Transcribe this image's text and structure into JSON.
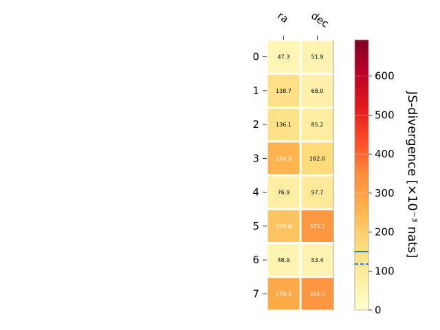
{
  "chart_data": {
    "type": "heatmap",
    "columns": [
      "ra",
      "dec"
    ],
    "rows": [
      "0",
      "1",
      "2",
      "3",
      "4",
      "5",
      "6",
      "7"
    ],
    "values": [
      [
        47.3,
        51.9
      ],
      [
        138.7,
        68.0
      ],
      [
        136.1,
        85.2
      ],
      [
        254.9,
        162.0
      ],
      [
        76.9,
        97.7
      ],
      [
        220.8,
        323.7
      ],
      [
        48.9,
        53.4
      ],
      [
        278.3,
        324.3
      ]
    ],
    "value_labels": [
      [
        "47.3",
        "51.9"
      ],
      [
        "138.7",
        "68.0"
      ],
      [
        "136.1",
        "85.2"
      ],
      [
        "254.9",
        "162.0"
      ],
      [
        "76.9",
        "97.7"
      ],
      [
        "220.8",
        "323.7"
      ],
      [
        "48.9",
        "53.4"
      ],
      [
        "278.3",
        "324.3"
      ]
    ],
    "colorbar": {
      "label": "JS-divergence [×10⁻³ nats]",
      "range": [
        0,
        693
      ],
      "ticks": [
        "0",
        "100",
        "200",
        "300",
        "400",
        "500",
        "600"
      ],
      "tick_values": [
        0,
        100,
        200,
        300,
        400,
        500,
        600
      ],
      "colormap": "YlOrRd",
      "reference_lines": [
        {
          "value": 150,
          "style": "solid",
          "color": "#1f77b4"
        },
        {
          "value": 118,
          "style": "dashed",
          "color": "#1f77b4"
        }
      ]
    }
  }
}
